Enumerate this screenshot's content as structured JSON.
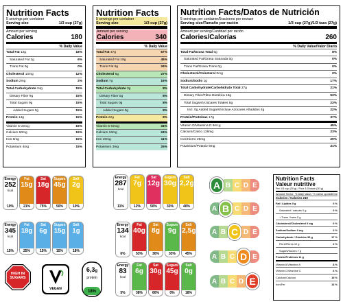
{
  "label1": {
    "title": "Nutrition Facts",
    "servings": "5 servings per container",
    "serving_size_label": "Serving size",
    "serving_size": "1/3 cup (27g)",
    "amount_per": "Amount per serving",
    "calories_label": "Calories",
    "calories": "180",
    "dv_header": "% Daily Value",
    "rows": [
      [
        "Total Fat",
        "12g",
        "18%"
      ],
      [
        "Saturated Fat",
        "1g",
        "6%"
      ],
      [
        "Trans Fat",
        "0g",
        "0%"
      ],
      [
        "Cholesterol",
        "10mg",
        "12%"
      ],
      [
        "Sodium",
        "2mg",
        "2%"
      ],
      [
        "Total Carbohydrate",
        "24g",
        "15%"
      ],
      [
        "Dietary Fiber",
        "9g",
        "15%"
      ],
      [
        "Total Sugars",
        "9g",
        "15%"
      ],
      [
        "Added Sugars",
        "0g",
        "15%"
      ],
      [
        "Protein",
        "14g",
        "15%"
      ],
      [
        "Vitamin D",
        "2mcg",
        "15%"
      ],
      [
        "Calcium",
        "60mg",
        "15%"
      ],
      [
        "Iron",
        "6mg",
        "15%"
      ],
      [
        "Potassium",
        "4mg",
        "15%"
      ]
    ]
  },
  "label2": {
    "title": "Nutrition Facts",
    "servings": "5 servings per container",
    "serving_size_label": "Serving size",
    "serving_size": "1/3 cup (27g)",
    "amount_per": "Amount per serving",
    "calories_label": "Calories",
    "calories": "340",
    "dv_header": "% Daily Value",
    "rows": [
      [
        "Total Fat",
        "47g",
        "67%"
      ],
      [
        "Saturated Fat",
        "19g",
        "45%"
      ],
      [
        "Trans Fat",
        "8g",
        "34%"
      ],
      [
        "Cholesterol",
        "6g",
        "27%"
      ],
      [
        "Sodium",
        "7g",
        "16%"
      ],
      [
        "Total Carbohydrate",
        "3g",
        "8%"
      ],
      [
        "Dietary Fiber",
        "0g",
        "8%"
      ],
      [
        "Total Sugars",
        "0g",
        "8%"
      ],
      [
        "Added Sugars",
        "0g",
        "8%"
      ],
      [
        "Protein",
        "22g",
        "8%"
      ],
      [
        "Vitamin D",
        "5mcg",
        "34%"
      ],
      [
        "Calcium",
        "16mg",
        "24%"
      ],
      [
        "Iron",
        "19mg",
        "11%"
      ],
      [
        "Potassium",
        "3mg",
        "25%"
      ]
    ]
  },
  "label3": {
    "title": "Nutrition Facts/Datos de Nutrición",
    "servings": "5 servings per container/5raciones por envase",
    "serving_size_label": "Serving size/Tamaño por ración",
    "serving_size": "1/3 cup (27g)/1/3 taza (27g)",
    "amount_per": "Amount per serving/Cantidad por ración",
    "calories_label": "Calories/Calorías",
    "calories": "260",
    "dv_header": "% Daily Value/Valor Diario",
    "rows": [
      [
        "Total Fat/Grasa Total",
        "6g",
        "8%"
      ],
      [
        "Saturated Fat/Grasa Saturada",
        "0g",
        "0%"
      ],
      [
        "Trans Fat/Grasa Trans",
        "0g",
        "0%"
      ],
      [
        "Cholesterol/Colesterol",
        "0mg",
        "0%"
      ],
      [
        "Sodium/Sodio",
        "1g",
        "17%"
      ],
      [
        "Total Carbohydrate/Carbohidrato Total",
        "27g",
        "21%"
      ],
      [
        "Dietary Fiber/Fibra Dietética",
        "15g",
        "53%"
      ],
      [
        "Total Sugars/Azúcares Totales",
        "5g",
        "23%"
      ],
      [
        "Incl. 0g Added Sugars/Incluye Azúcares Añadidos",
        "4g",
        "22%"
      ],
      [
        "Protein/Proteínas",
        "17g",
        "37%"
      ],
      [
        "Vitamin D/Vitamina D",
        "6mcg",
        "45%"
      ],
      [
        "Calcium/Calcio",
        "128mg",
        "23%"
      ],
      [
        "Iron/Hierro",
        "25mg",
        "29%"
      ],
      [
        "Potassium/Potasio",
        "9mg",
        "31%"
      ]
    ]
  },
  "tl1": {
    "energy_label": "Energy",
    "energy_kj": "252",
    "energy_kcal": "kcal",
    "energy_pct": "10%",
    "items": [
      {
        "name": "Fat",
        "val": "15g",
        "pct": "21%",
        "color": "#e08a1a"
      },
      {
        "name": "Sat",
        "val": "18g",
        "pct": "75%",
        "color": "#d6262a"
      },
      {
        "name": "Sugars",
        "val": "45g",
        "pct": "50%",
        "color": "#e08a1a"
      },
      {
        "name": "Salt",
        "val": "2g",
        "pct": "10%",
        "color": "#f0c419"
      }
    ]
  },
  "tl2": {
    "energy_label": "Energy",
    "energy_kj": "287",
    "energy_kcal": "kcal",
    "energy_pct": "11%",
    "items": [
      {
        "name": "Fat",
        "val": "7g",
        "pct": "12%",
        "color": "#f0c419"
      },
      {
        "name": "Sat",
        "val": "12g",
        "pct": "50%",
        "color": "#e03060"
      },
      {
        "name": "Sugars",
        "val": "30g",
        "pct": "33%",
        "color": "#f0c419"
      },
      {
        "name": "Salt",
        "val": "2,2g",
        "pct": "40%",
        "color": "#f0c419"
      }
    ]
  },
  "tl3": {
    "energy_label": "Energy",
    "energy_kj": "345",
    "energy_kcal": "kcal",
    "energy_pct": "15%",
    "items": [
      {
        "name": "Fat",
        "val": "18g",
        "pct": "25%",
        "color": "#5ab0e6"
      },
      {
        "name": "Sat",
        "val": "6g",
        "pct": "15%",
        "color": "#5ab0e6"
      },
      {
        "name": "Sugars",
        "val": "15g",
        "pct": "15%",
        "color": "#5ab0e6"
      },
      {
        "name": "Salt",
        "val": "1g",
        "pct": "18%",
        "color": "#5ab0e6"
      }
    ]
  },
  "tl4": {
    "energy_label": "Energy",
    "energy_kj": "134",
    "energy_kcal": "kcal",
    "energy_pct": "6%",
    "items": [
      {
        "name": "Fat",
        "val": "40g",
        "pct": "53%",
        "color": "#d6262a"
      },
      {
        "name": "Sat",
        "val": "8g",
        "pct": "30%",
        "color": "#e08a1a"
      },
      {
        "name": "Sugars",
        "val": "9g",
        "pct": "33%",
        "color": "#5ab84a"
      },
      {
        "name": "Salt",
        "val": "2,5g",
        "pct": "45%",
        "color": "#e08a1a"
      }
    ]
  },
  "tl5": {
    "energy_label": "Energy",
    "energy_kj": "83",
    "energy_kcal": "kcal",
    "energy_pct": "5%",
    "items": [
      {
        "name": "Fat",
        "val": "6g",
        "pct": "38%",
        "color": "#5ab84a"
      },
      {
        "name": "Sat",
        "val": "30g",
        "pct": "60%",
        "color": "#d6262a"
      },
      {
        "name": "Sugars",
        "val": "45g",
        "pct": "0%",
        "color": "#d6262a"
      },
      {
        "name": "Salt",
        "val": "0g",
        "pct": "18%",
        "color": "#5ab84a"
      }
    ]
  },
  "badges": {
    "high_sugar": "HIGH IN SUGARS",
    "vegan": "VEGAN",
    "protein_val": "6,3",
    "protein_unit": "g",
    "protein_label": "protein",
    "protein_pct": "18%"
  },
  "nutriscore": {
    "letters": [
      "A",
      "B",
      "C",
      "D",
      "E"
    ],
    "colors": [
      "#2e8b3a",
      "#86c24a",
      "#f2c418",
      "#ef8a1c",
      "#e0412b"
    ]
  },
  "label4": {
    "title": "Nutrition Facts",
    "title2": "Valeur nutritive",
    "per": "Per 1/3 cup (30 g) / Pour 1/3 tasse (30 g)",
    "amount": "Amount Teneur",
    "dv": "% Daily Value / % valeur quotidienne",
    "calories": "Calories / Calories 219",
    "rows": [
      [
        "Fat / Lipides 0 g",
        "0 %"
      ],
      [
        "Saturated / saturés 0 g",
        "0 %"
      ],
      [
        "+ Trans / trans 0 g",
        ""
      ],
      [
        "Cholesterol/Cholestérol 0 mg",
        "0 %"
      ],
      [
        "Sodium/Sodium 0 mg",
        "0 %"
      ],
      [
        "Carbohydrate / Glucides 33 g",
        "17 %"
      ],
      [
        "Fibre/Fibres 12 g",
        "2 %"
      ],
      [
        "Sugars/Sucres 7 g",
        ""
      ],
      [
        "Protein/Protéines 11 g",
        ""
      ],
      [
        "Vitamin A/Vitamine A",
        "8 %"
      ],
      [
        "Vitamin C/Vitamine C",
        "6 %"
      ],
      [
        "Calcium/Calcium",
        "15 %"
      ],
      [
        "Iron/Fer",
        "13 %"
      ]
    ]
  }
}
